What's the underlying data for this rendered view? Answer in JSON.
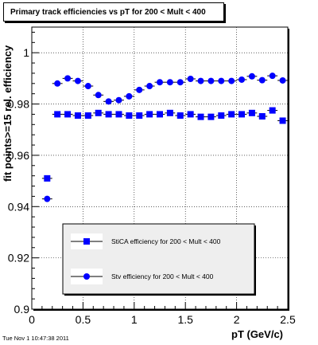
{
  "title": "Primary track efficiencies vs pT for 200 < Mult < 400",
  "timestamp": "Tue Nov  1 10:47:38 2011",
  "chart_data": {
    "type": "scatter",
    "title": "Primary track efficiencies vs pT for 200 < Mult < 400",
    "xlabel": "pT (GeV/c)",
    "ylabel": "fit points>=15 rel. efficiency",
    "xlim": [
      0,
      2.5
    ],
    "ylim": [
      0.9,
      1.01
    ],
    "xticks": [
      0,
      0.5,
      1,
      1.5,
      2,
      2.5
    ],
    "yticks": [
      0.9,
      0.92,
      0.94,
      0.96,
      0.98,
      1
    ],
    "legend_position": "bottom-right",
    "series": [
      {
        "name": "StiCA efficiency  for 200 < Mult < 400",
        "marker": "square",
        "color": "#0000ff",
        "x": [
          0.15,
          0.25,
          0.35,
          0.45,
          0.55,
          0.65,
          0.75,
          0.85,
          0.95,
          1.05,
          1.15,
          1.25,
          1.35,
          1.45,
          1.55,
          1.65,
          1.75,
          1.85,
          1.95,
          2.05,
          2.15,
          2.25,
          2.35,
          2.45
        ],
        "y": [
          0.951,
          0.976,
          0.976,
          0.9755,
          0.9755,
          0.9765,
          0.976,
          0.976,
          0.9755,
          0.9755,
          0.976,
          0.976,
          0.9765,
          0.9755,
          0.976,
          0.975,
          0.975,
          0.9755,
          0.976,
          0.976,
          0.9765,
          0.9752,
          0.9775,
          0.9735
        ]
      },
      {
        "name": "Stv efficiency  for 200 < Mult < 400",
        "marker": "circle",
        "color": "#0000ff",
        "x": [
          0.15,
          0.25,
          0.35,
          0.45,
          0.55,
          0.65,
          0.75,
          0.85,
          0.95,
          1.05,
          1.15,
          1.25,
          1.35,
          1.45,
          1.55,
          1.65,
          1.75,
          1.85,
          1.95,
          2.05,
          2.15,
          2.25,
          2.35,
          2.45
        ],
        "y": [
          0.943,
          0.988,
          0.99,
          0.989,
          0.987,
          0.9835,
          0.981,
          0.9815,
          0.983,
          0.9855,
          0.987,
          0.9885,
          0.9885,
          0.9885,
          0.9898,
          0.989,
          0.989,
          0.989,
          0.989,
          0.9895,
          0.9908,
          0.9893,
          0.991,
          0.9892
        ]
      }
    ]
  }
}
